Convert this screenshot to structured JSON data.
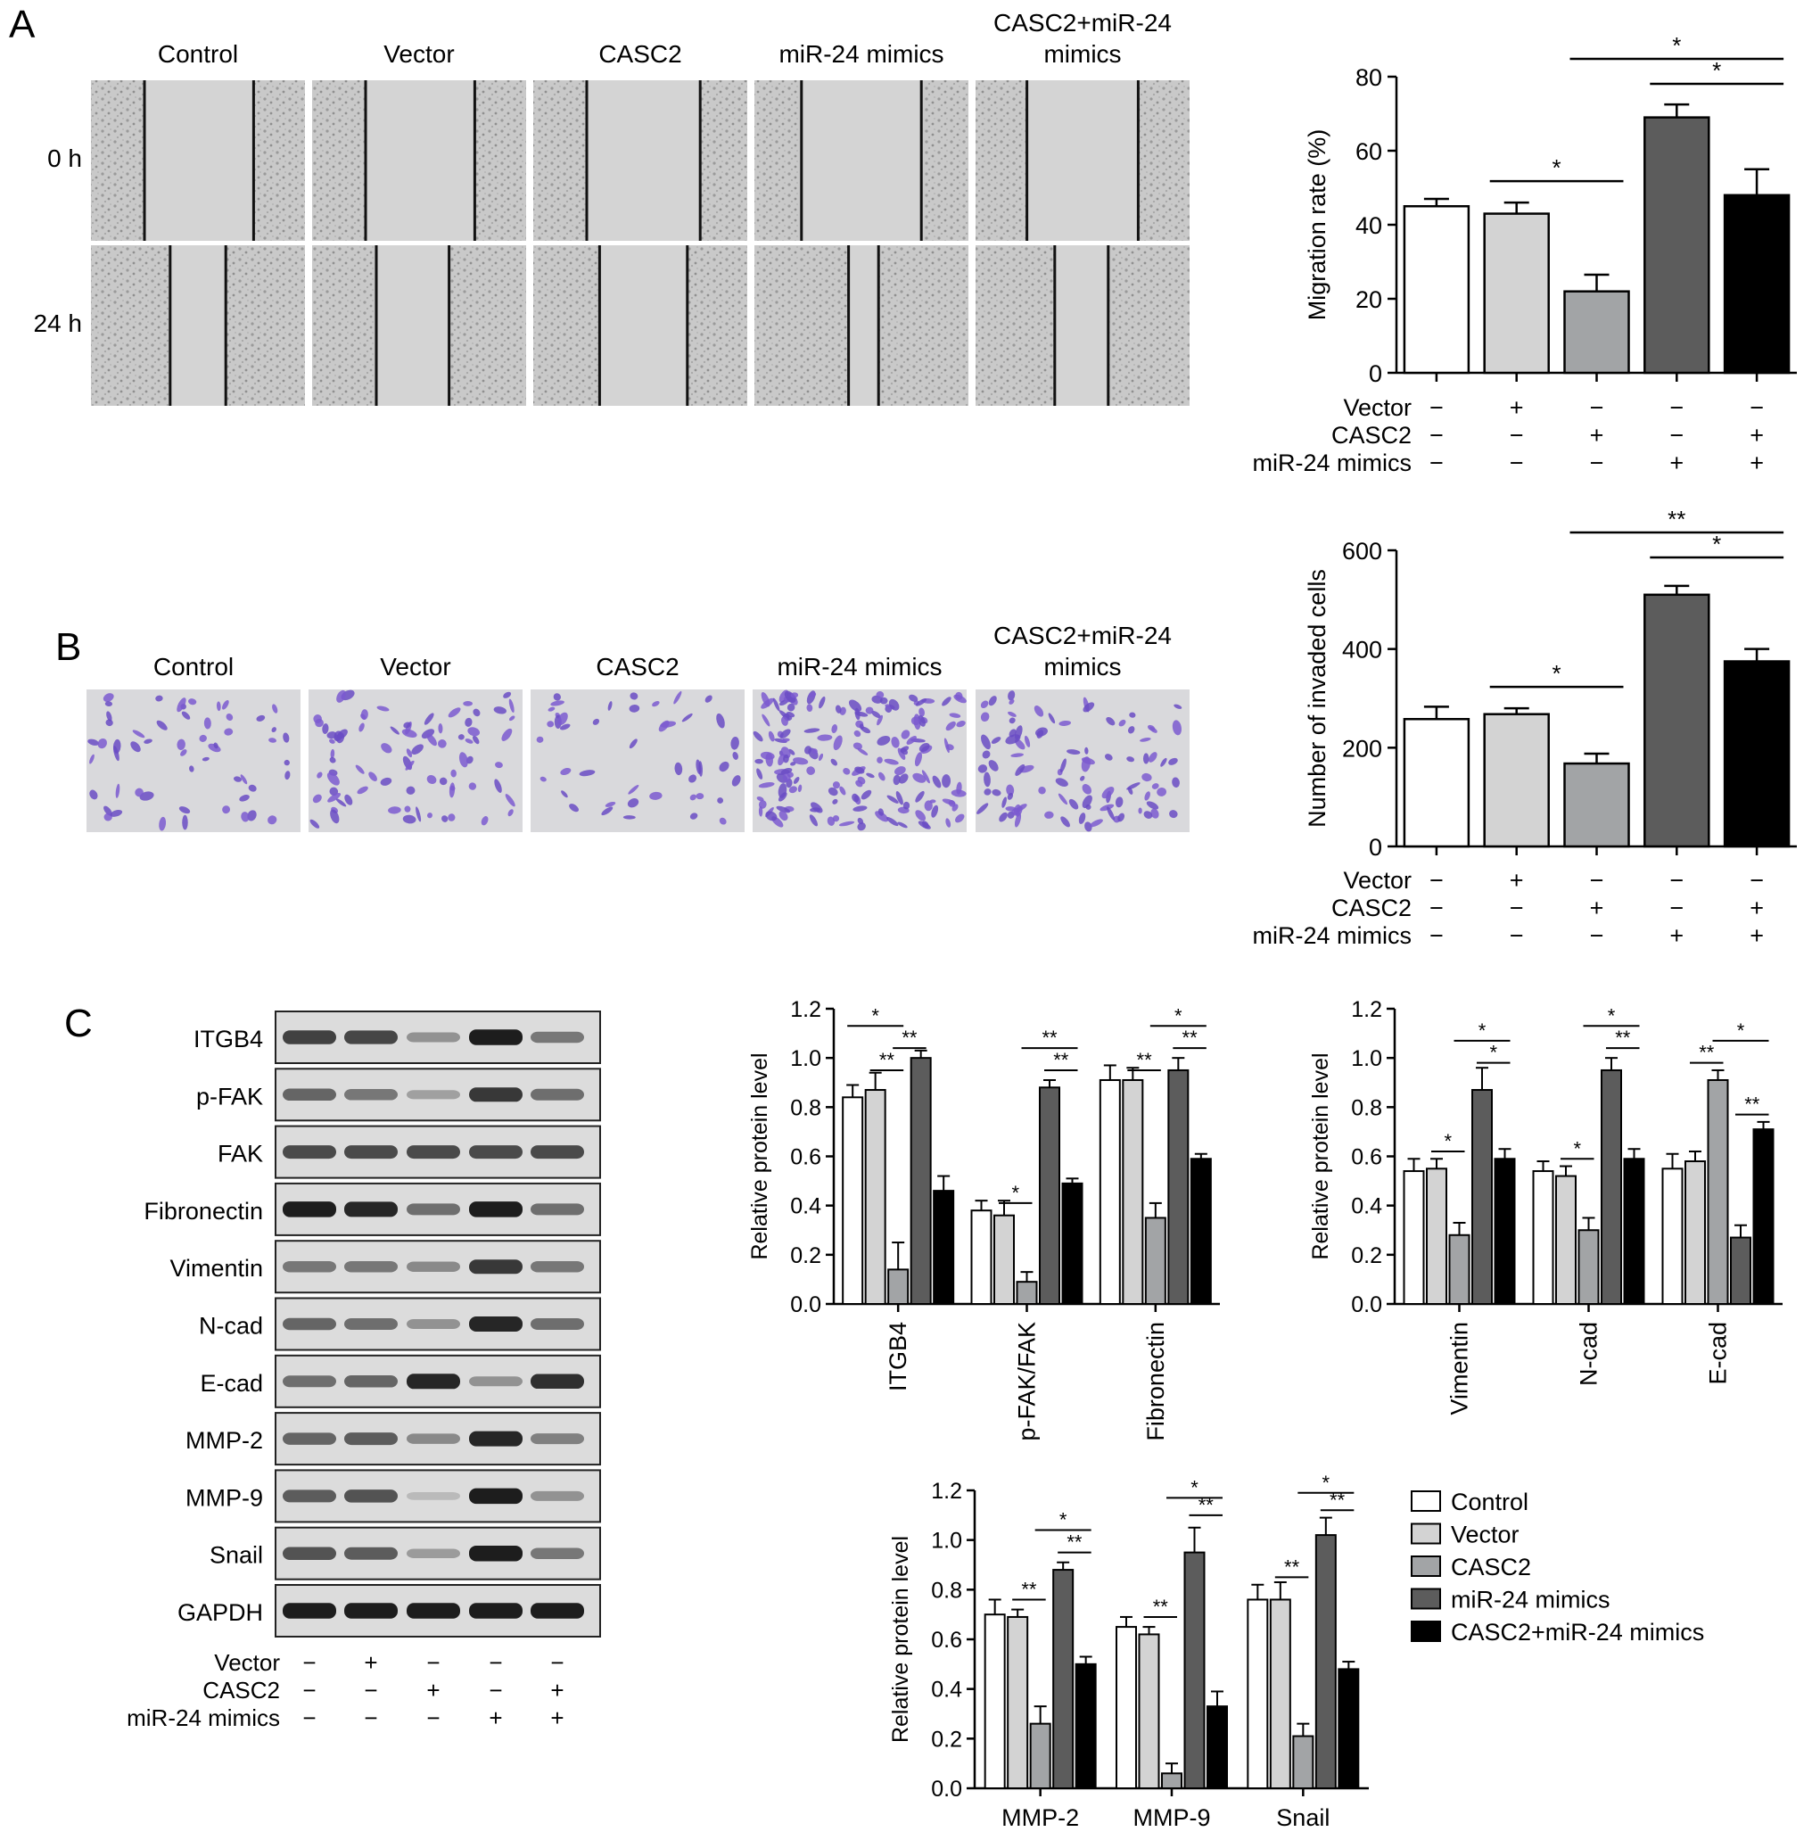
{
  "colors": {
    "Control": "#ffffff",
    "Vector": "#d3d3d3",
    "CASC2": "#a2a4a6",
    "miR-24 mimics": "#5c5c5c",
    "CASC2+miR-24 mimics": "#000000"
  },
  "panelA": {
    "label": "A",
    "groups": [
      "Control",
      "Vector",
      "CASC2",
      "miR-24 mimics",
      "CASC2+miR-24 mimics"
    ],
    "rows": [
      "0 h",
      "24 h"
    ]
  },
  "panelB": {
    "label": "B",
    "groups": [
      "Control",
      "Vector",
      "CASC2",
      "miR-24 mimics",
      "CASC2+miR-24 mimics"
    ]
  },
  "panelC": {
    "label": "C",
    "blot_labels": [
      "ITGB4",
      "p-FAK",
      "FAK",
      "Fibronectin",
      "Vimentin",
      "N-cad",
      "E-cad",
      "MMP-2",
      "MMP-9",
      "Snail",
      "GAPDH"
    ],
    "band_intensity": [
      [
        0.75,
        0.72,
        0.3,
        0.95,
        0.45
      ],
      [
        0.55,
        0.45,
        0.22,
        0.8,
        0.5
      ],
      [
        0.7,
        0.7,
        0.7,
        0.7,
        0.7
      ],
      [
        0.95,
        0.9,
        0.5,
        0.95,
        0.5
      ],
      [
        0.45,
        0.45,
        0.35,
        0.8,
        0.45
      ],
      [
        0.55,
        0.5,
        0.3,
        0.9,
        0.5
      ],
      [
        0.5,
        0.55,
        0.9,
        0.3,
        0.85
      ],
      [
        0.55,
        0.6,
        0.35,
        0.9,
        0.4
      ],
      [
        0.6,
        0.65,
        0.08,
        0.95,
        0.3
      ],
      [
        0.65,
        0.6,
        0.25,
        0.95,
        0.45
      ],
      [
        0.95,
        0.95,
        0.95,
        0.95,
        0.95
      ]
    ]
  },
  "treatment_table": {
    "rows": [
      "Vector",
      "CASC2",
      "miR-24 mimics"
    ],
    "signs": [
      [
        "−",
        "+",
        "−",
        "−",
        "−"
      ],
      [
        "−",
        "−",
        "+",
        "−",
        "+"
      ],
      [
        "−",
        "−",
        "−",
        "+",
        "+"
      ]
    ]
  },
  "legend": [
    "Control",
    "Vector",
    "CASC2",
    "miR-24 mimics",
    "CASC2+miR-24 mimics"
  ],
  "chart_data": [
    {
      "id": "migration",
      "type": "bar",
      "categories": [
        "Control",
        "Vector",
        "CASC2",
        "miR-24 mimics",
        "CASC2+miR-24 mimics"
      ],
      "values": [
        45,
        43,
        22,
        69,
        48
      ],
      "errors": [
        2,
        3,
        4.5,
        3.5,
        7
      ],
      "ylabel": "Migration rate (%)",
      "ylim": [
        0,
        80
      ],
      "yticks": [
        "0",
        "20",
        "40",
        "60",
        "80"
      ],
      "significance": [
        {
          "from": "Vector",
          "to": "CASC2",
          "text": "*"
        },
        {
          "from": "miR-24 mimics",
          "to": "CASC2+miR-24 mimics",
          "text": "*"
        },
        {
          "from": "CASC2",
          "to": "CASC2+miR-24 mimics",
          "text": "*"
        }
      ]
    },
    {
      "id": "invasion",
      "type": "bar",
      "categories": [
        "Control",
        "Vector",
        "CASC2",
        "miR-24 mimics",
        "CASC2+miR-24 mimics"
      ],
      "values": [
        258,
        268,
        168,
        510,
        375
      ],
      "errors": [
        25,
        12,
        20,
        18,
        25
      ],
      "ylabel": "Number of invaded cells",
      "ylim": [
        0,
        600
      ],
      "yticks": [
        "0",
        "200",
        "400",
        "600"
      ],
      "significance": [
        {
          "from": "Vector",
          "to": "CASC2",
          "text": "*"
        },
        {
          "from": "miR-24 mimics",
          "to": "CASC2+miR-24 mimics",
          "text": "*"
        },
        {
          "from": "CASC2",
          "to": "CASC2+miR-24 mimics",
          "text": "**"
        }
      ]
    },
    {
      "id": "protein1",
      "type": "bar",
      "categories": [
        "ITGB4",
        "p-FAK/FAK",
        "Fibronectin"
      ],
      "series": [
        {
          "name": "Control",
          "values": [
            0.84,
            0.38,
            0.91
          ],
          "errors": [
            0.05,
            0.04,
            0.06
          ]
        },
        {
          "name": "Vector",
          "values": [
            0.87,
            0.36,
            0.91
          ],
          "errors": [
            0.07,
            0.06,
            0.05
          ]
        },
        {
          "name": "CASC2",
          "values": [
            0.14,
            0.09,
            0.35
          ],
          "errors": [
            0.11,
            0.04,
            0.06
          ]
        },
        {
          "name": "miR-24 mimics",
          "values": [
            1.0,
            0.88,
            0.95
          ],
          "errors": [
            0.03,
            0.03,
            0.05
          ]
        },
        {
          "name": "CASC2+miR-24 mimics",
          "values": [
            0.46,
            0.49,
            0.59
          ],
          "errors": [
            0.06,
            0.02,
            0.02
          ]
        }
      ],
      "ylabel": "Relative protein level",
      "ylim": [
        0,
        1.2
      ],
      "yticks": [
        "0.0",
        "0.2",
        "0.4",
        "0.6",
        "0.8",
        "1.0",
        "1.2"
      ],
      "significance": [
        {
          "category": "ITGB4",
          "from": "Vector",
          "to": "CASC2",
          "text": "**",
          "level": 0.95
        },
        {
          "category": "ITGB4",
          "from": "CASC2",
          "to": "miR-24 mimics",
          "text": "**",
          "level": 1.04
        },
        {
          "category": "ITGB4",
          "from": "Control",
          "to": "CASC2",
          "text": "*",
          "level": 1.13
        },
        {
          "category": "p-FAK/FAK",
          "from": "Vector",
          "to": "CASC2",
          "text": "*",
          "level": 0.41
        },
        {
          "category": "p-FAK/FAK",
          "from": "miR-24 mimics",
          "to": "CASC2+miR-24 mimics",
          "text": "**",
          "level": 0.95
        },
        {
          "category": "p-FAK/FAK",
          "from": "CASC2",
          "to": "CASC2+miR-24 mimics",
          "text": "**",
          "level": 1.04
        },
        {
          "category": "Fibronectin",
          "from": "Vector",
          "to": "CASC2",
          "text": "**",
          "level": 0.95
        },
        {
          "category": "Fibronectin",
          "from": "miR-24 mimics",
          "to": "CASC2+miR-24 mimics",
          "text": "**",
          "level": 1.04
        },
        {
          "category": "Fibronectin",
          "from": "CASC2",
          "to": "CASC2+miR-24 mimics",
          "text": "*",
          "level": 1.13
        }
      ]
    },
    {
      "id": "protein2",
      "type": "bar",
      "categories": [
        "Vimentin",
        "N-cad",
        "E-cad"
      ],
      "series": [
        {
          "name": "Control",
          "values": [
            0.54,
            0.54,
            0.55
          ],
          "errors": [
            0.05,
            0.04,
            0.06
          ]
        },
        {
          "name": "Vector",
          "values": [
            0.55,
            0.52,
            0.58
          ],
          "errors": [
            0.04,
            0.04,
            0.04
          ]
        },
        {
          "name": "CASC2",
          "values": [
            0.28,
            0.3,
            0.91
          ],
          "errors": [
            0.05,
            0.05,
            0.04
          ]
        },
        {
          "name": "miR-24 mimics",
          "values": [
            0.87,
            0.95,
            0.27
          ],
          "errors": [
            0.09,
            0.05,
            0.05
          ]
        },
        {
          "name": "CASC2+miR-24 mimics",
          "values": [
            0.59,
            0.59,
            0.71
          ],
          "errors": [
            0.04,
            0.04,
            0.03
          ]
        }
      ],
      "ylabel": "Relative protein level",
      "ylim": [
        0,
        1.2
      ],
      "yticks": [
        "0.0",
        "0.2",
        "0.4",
        "0.6",
        "0.8",
        "1.0",
        "1.2"
      ],
      "significance": [
        {
          "category": "Vimentin",
          "from": "Vector",
          "to": "CASC2",
          "text": "*",
          "level": 0.62
        },
        {
          "category": "Vimentin",
          "from": "miR-24 mimics",
          "to": "CASC2+miR-24 mimics",
          "text": "*",
          "level": 0.98
        },
        {
          "category": "Vimentin",
          "from": "CASC2",
          "to": "CASC2+miR-24 mimics",
          "text": "*",
          "level": 1.07
        },
        {
          "category": "N-cad",
          "from": "Vector",
          "to": "CASC2",
          "text": "*",
          "level": 0.59
        },
        {
          "category": "N-cad",
          "from": "miR-24 mimics",
          "to": "CASC2+miR-24 mimics",
          "text": "**",
          "level": 1.04
        },
        {
          "category": "N-cad",
          "from": "CASC2",
          "to": "CASC2+miR-24 mimics",
          "text": "*",
          "level": 1.13
        },
        {
          "category": "E-cad",
          "from": "Vector",
          "to": "CASC2",
          "text": "**",
          "level": 0.98
        },
        {
          "category": "E-cad",
          "from": "miR-24 mimics",
          "to": "CASC2+miR-24 mimics",
          "text": "**",
          "level": 0.77
        },
        {
          "category": "E-cad",
          "from": "CASC2",
          "to": "CASC2+miR-24 mimics",
          "text": "*",
          "level": 1.07
        }
      ]
    },
    {
      "id": "protein3",
      "type": "bar",
      "categories": [
        "MMP-2",
        "MMP-9",
        "Snail"
      ],
      "series": [
        {
          "name": "Control",
          "values": [
            0.7,
            0.65,
            0.76
          ],
          "errors": [
            0.06,
            0.04,
            0.06
          ]
        },
        {
          "name": "Vector",
          "values": [
            0.69,
            0.62,
            0.76
          ],
          "errors": [
            0.03,
            0.03,
            0.07
          ]
        },
        {
          "name": "CASC2",
          "values": [
            0.26,
            0.06,
            0.21
          ],
          "errors": [
            0.07,
            0.04,
            0.05
          ]
        },
        {
          "name": "miR-24 mimics",
          "values": [
            0.88,
            0.95,
            1.02
          ],
          "errors": [
            0.03,
            0.1,
            0.07
          ]
        },
        {
          "name": "CASC2+miR-24 mimics",
          "values": [
            0.5,
            0.33,
            0.48
          ],
          "errors": [
            0.03,
            0.06,
            0.03
          ]
        }
      ],
      "ylabel": "Relative protein level",
      "ylim": [
        0,
        1.2
      ],
      "yticks": [
        "0.0",
        "0.2",
        "0.4",
        "0.6",
        "0.8",
        "1.0",
        "1.2"
      ],
      "significance": [
        {
          "category": "MMP-2",
          "from": "Vector",
          "to": "CASC2",
          "text": "**",
          "level": 0.76
        },
        {
          "category": "MMP-2",
          "from": "miR-24 mimics",
          "to": "CASC2+miR-24 mimics",
          "text": "**",
          "level": 0.95
        },
        {
          "category": "MMP-2",
          "from": "CASC2",
          "to": "CASC2+miR-24 mimics",
          "text": "*",
          "level": 1.04
        },
        {
          "category": "MMP-9",
          "from": "Vector",
          "to": "CASC2",
          "text": "**",
          "level": 0.69
        },
        {
          "category": "MMP-9",
          "from": "miR-24 mimics",
          "to": "CASC2+miR-24 mimics",
          "text": "**",
          "level": 1.1
        },
        {
          "category": "MMP-9",
          "from": "CASC2",
          "to": "CASC2+miR-24 mimics",
          "text": "*",
          "level": 1.17
        },
        {
          "category": "Snail",
          "from": "Vector",
          "to": "CASC2",
          "text": "**",
          "level": 0.85
        },
        {
          "category": "Snail",
          "from": "miR-24 mimics",
          "to": "CASC2+miR-24 mimics",
          "text": "**",
          "level": 1.12
        },
        {
          "category": "Snail",
          "from": "CASC2",
          "to": "CASC2+miR-24 mimics",
          "text": "*",
          "level": 1.19
        }
      ]
    }
  ]
}
